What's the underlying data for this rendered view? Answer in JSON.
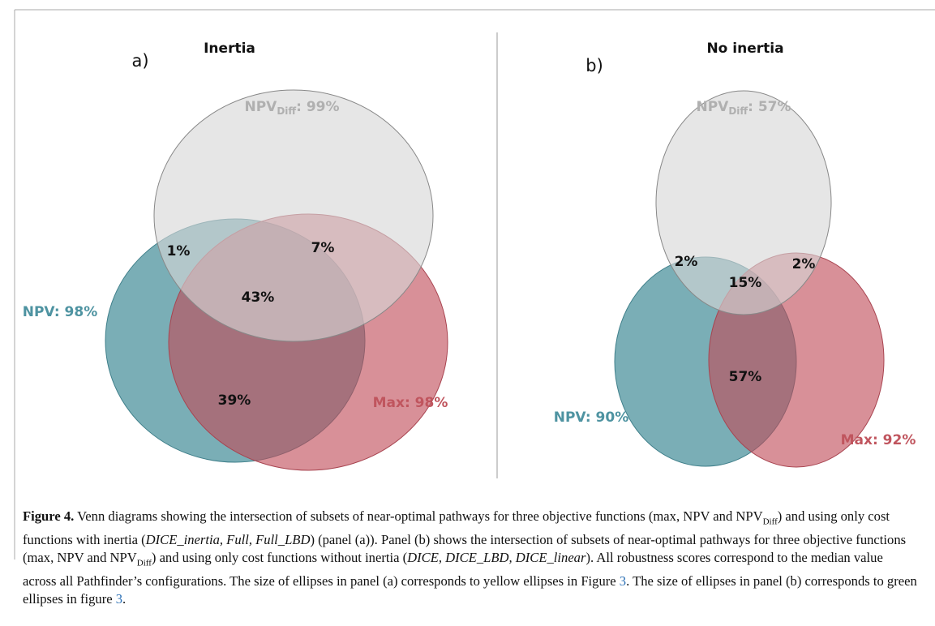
{
  "figure": {
    "panels": [
      {
        "letter": "a)",
        "title": "Inertia",
        "npv_diff": {
          "name": "NPV",
          "sub": "Diff",
          "score": ": 99%"
        },
        "npv": "NPV: 98%",
        "max": "Max: 98%",
        "regions": [
          "1%",
          "7%",
          "43%",
          "39%"
        ]
      },
      {
        "letter": "b)",
        "title": "No inertia",
        "npv_diff": {
          "name": "NPV",
          "sub": "Diff",
          "score": ": 57%"
        },
        "npv": "NPV: 90%",
        "max": "Max: 92%",
        "regions": [
          "2%",
          "2%",
          "15%",
          "57%"
        ]
      }
    ],
    "caption": {
      "runs": [
        "Figure 4.",
        " Venn diagrams showing the intersection of subsets of near-optimal pathways for three objective functions (max, NPV and NPV",
        "Diff",
        ") and using only cost functions with inertia (",
        "DICE_inertia, Full, Full_LBD",
        ") (panel (a)). Panel (b) shows the intersection of subsets of near-optimal pathways for three objective functions (max, NPV and NPV",
        "Diff",
        ") and using only cost functions without inertia (",
        "DICE, DICE_LBD, DICE_linear",
        "). All robustness scores correspond to the median value across all Pathfinder’s configurations. The size of ellipses in panel (a) corresponds to yellow ellipses in Figure ",
        "3",
        ". The size of ellipses in panel (b) corresponds to green ellipses in figure ",
        "3",
        "."
      ]
    }
  }
}
